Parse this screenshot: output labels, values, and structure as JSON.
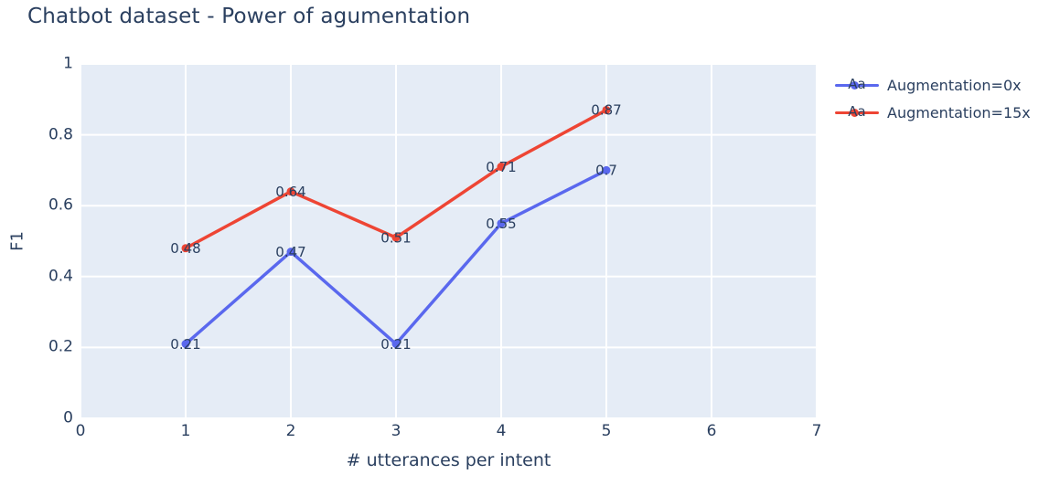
{
  "chart_data": {
    "type": "line",
    "title": "Chatbot dataset - Power of agumentation",
    "xlabel": "# utterances per intent",
    "ylabel": "F1",
    "xlim": [
      0,
      7
    ],
    "ylim": [
      0,
      1
    ],
    "grid": true,
    "legend_position": "outside-top-right",
    "legend_sample_text": "Aa",
    "xticks": {
      "values": [
        0,
        1,
        2,
        3,
        4,
        5,
        6,
        7
      ],
      "labels": [
        "0",
        "1",
        "2",
        "3",
        "4",
        "5",
        "6",
        "7"
      ]
    },
    "yticks": {
      "values": [
        0,
        0.2,
        0.4,
        0.6,
        0.8,
        1
      ],
      "labels": [
        "0",
        "0.2",
        "0.4",
        "0.6",
        "0.8",
        "1"
      ]
    },
    "x": [
      1,
      2,
      3,
      4,
      5
    ],
    "series": [
      {
        "name": "Augmentation=0x",
        "color": "#5a68ee",
        "values": [
          0.21,
          0.47,
          0.21,
          0.55,
          0.7
        ],
        "point_labels": [
          "0.21",
          "0.47",
          "0.21",
          "0.55",
          "0.7"
        ]
      },
      {
        "name": "Augmentation=15x",
        "color": "#ee4534",
        "values": [
          0.48,
          0.64,
          0.51,
          0.71,
          0.87
        ],
        "point_labels": [
          "0.48",
          "0.64",
          "0.51",
          "0.71",
          "0.87"
        ]
      }
    ],
    "styles": {
      "plot_bg": "#e5ecf6",
      "grid_color": "#ffffff",
      "text_color": "#2a3f5f",
      "label_font_size": 15,
      "line_width": 3.5,
      "marker_radius": 4.5
    }
  }
}
